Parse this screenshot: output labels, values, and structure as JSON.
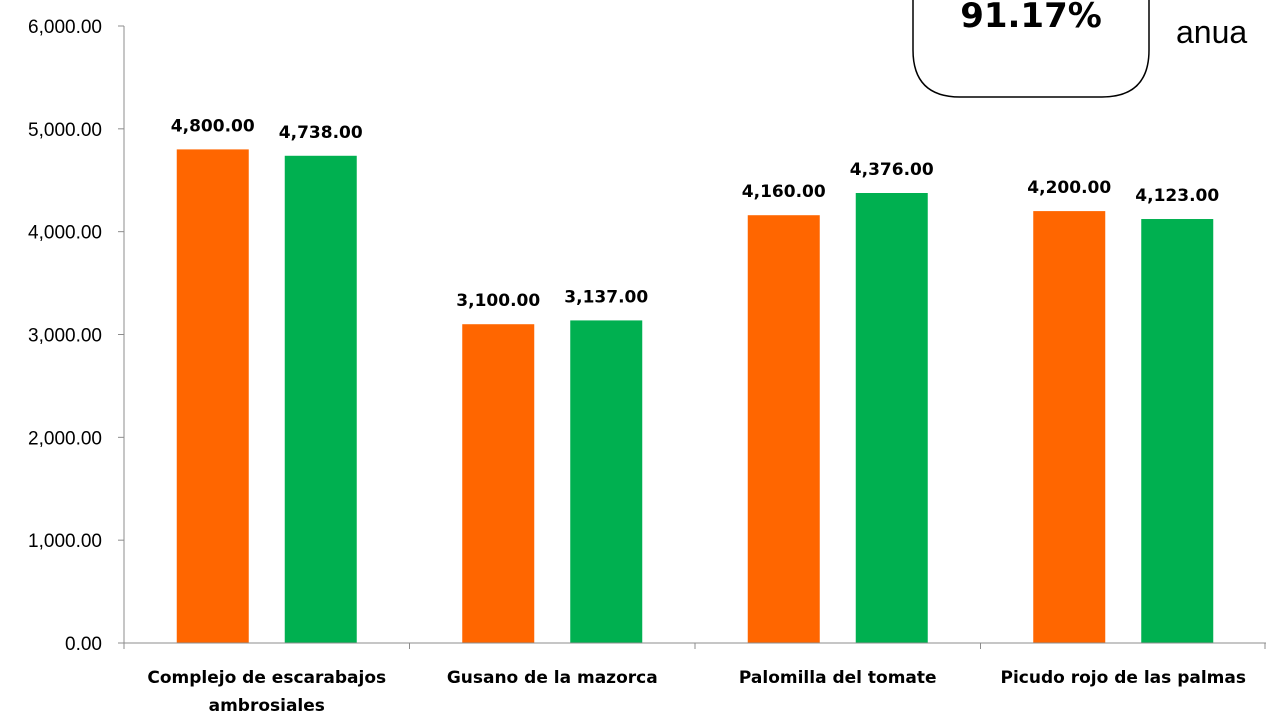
{
  "colors": {
    "series1": "#FF6600",
    "series2": "#00B050",
    "axis": "#8C8C8C"
  },
  "callout": {
    "value": "91.17%",
    "text": "anua"
  },
  "chart_data": {
    "type": "bar",
    "categories": [
      [
        "Complejo de escarabajos",
        "ambrosiales"
      ],
      [
        "Gusano de la mazorca"
      ],
      [
        "Palomilla del tomate"
      ],
      [
        "Picudo rojo de las palmas"
      ]
    ],
    "series": [
      {
        "values": [
          4800,
          3100,
          4160,
          4200
        ],
        "labels": [
          "4,800.00",
          "3,100.00",
          "4,160.00",
          "4,200.00"
        ]
      },
      {
        "values": [
          4738,
          3137,
          4376,
          4123
        ],
        "labels": [
          "4,738.00",
          "3,137.00",
          "4,376.00",
          "4,123.00"
        ]
      }
    ],
    "ylim": [
      0,
      6000
    ],
    "yticks": [
      0,
      1000,
      2000,
      3000,
      4000,
      5000,
      6000
    ],
    "ytick_labels": [
      "0.00",
      "1,000.00",
      "2,000.00",
      "3,000.00",
      "4,000.00",
      "5,000.00",
      "6,000.00"
    ],
    "grid": false,
    "legend": "none"
  }
}
